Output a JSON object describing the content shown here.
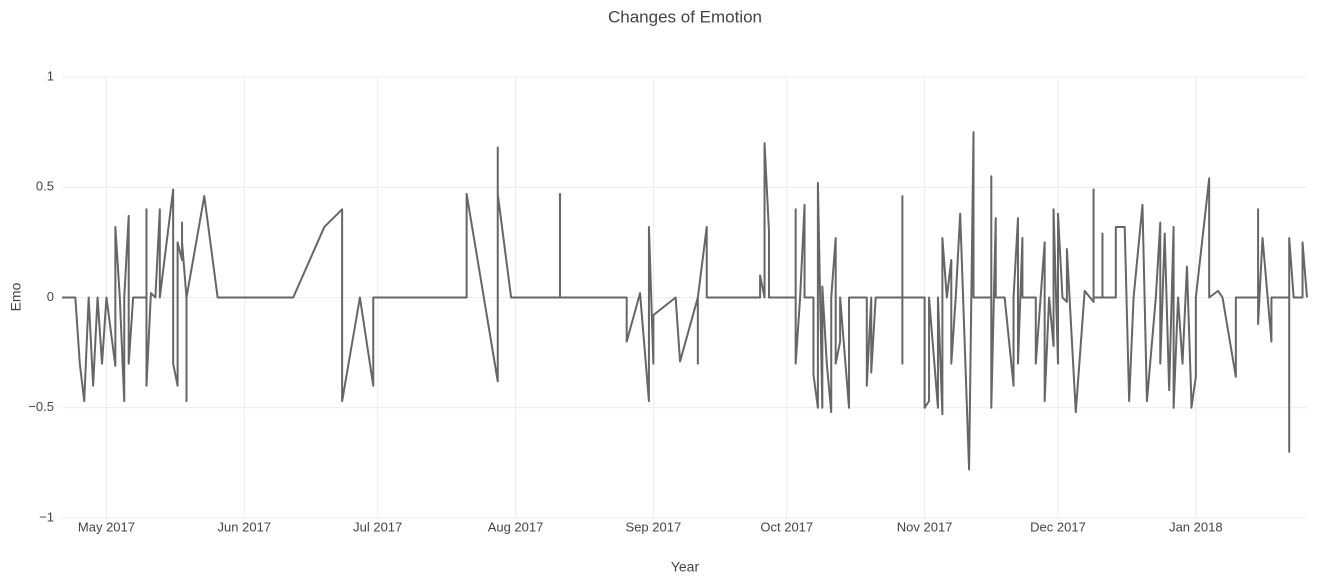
{
  "chart_data": {
    "type": "line",
    "title": "Changes of Emotion",
    "x_label": "Year",
    "y_label": "Emo",
    "color": "#666666",
    "grid": true,
    "xlim": [
      "2017-04-21",
      "2018-01-26"
    ],
    "xticks": [
      {
        "value": "2017-05-01",
        "label": "May 2017"
      },
      {
        "value": "2017-06-01",
        "label": "Jun 2017"
      },
      {
        "value": "2017-07-01",
        "label": "Jul 2017"
      },
      {
        "value": "2017-08-01",
        "label": "Aug 2017"
      },
      {
        "value": "2017-09-01",
        "label": "Sep 2017"
      },
      {
        "value": "2017-10-01",
        "label": "Oct 2017"
      },
      {
        "value": "2017-11-01",
        "label": "Nov 2017"
      },
      {
        "value": "2017-12-01",
        "label": "Dec 2017"
      },
      {
        "value": "2018-01-01",
        "label": "Jan 2018"
      }
    ],
    "ylim": [
      -1,
      1
    ],
    "yticks": [
      {
        "value": -1,
        "label": "−1"
      },
      {
        "value": -0.5,
        "label": "−0.5"
      },
      0,
      0.5,
      1
    ],
    "x": [
      "2017-04-21",
      "2017-04-24",
      "2017-04-25",
      "2017-04-26",
      "2017-04-27",
      "2017-04-28",
      "2017-04-29",
      "2017-04-30",
      "2017-05-01",
      "2017-05-03",
      "2017-05-03",
      "2017-05-04",
      "2017-05-05",
      "2017-05-05",
      "2017-05-06",
      "2017-05-06",
      "2017-05-07",
      "2017-05-10",
      "2017-05-10",
      "2017-05-10",
      "2017-05-11",
      "2017-05-12",
      "2017-05-13",
      "2017-05-13",
      "2017-05-16",
      "2017-05-16",
      "2017-05-17",
      "2017-05-17",
      "2017-05-18",
      "2017-05-18",
      "2017-05-18",
      "2017-05-19",
      "2017-05-19",
      "2017-05-19",
      "2017-05-23",
      "2017-05-26",
      "2017-06-12",
      "2017-06-19",
      "2017-06-23",
      "2017-06-23",
      "2017-06-27",
      "2017-06-30",
      "2017-06-30",
      "2017-07-21",
      "2017-07-21",
      "2017-07-28",
      "2017-07-28",
      "2017-07-28",
      "2017-07-31",
      "2017-08-11",
      "2017-08-11",
      "2017-08-11",
      "2017-08-26",
      "2017-08-26",
      "2017-08-29",
      "2017-08-31",
      "2017-08-31",
      "2017-09-01",
      "2017-09-01",
      "2017-09-06",
      "2017-09-07",
      "2017-09-11",
      "2017-09-11",
      "2017-09-11",
      "2017-09-13",
      "2017-09-13",
      "2017-09-25",
      "2017-09-25",
      "2017-09-26",
      "2017-09-26",
      "2017-09-27",
      "2017-09-27",
      "2017-10-03",
      "2017-10-03",
      "2017-10-03",
      "2017-10-04",
      "2017-10-05",
      "2017-10-05",
      "2017-10-07",
      "2017-10-07",
      "2017-10-08",
      "2017-10-08",
      "2017-10-09",
      "2017-10-09",
      "2017-10-10",
      "2017-10-11",
      "2017-10-11",
      "2017-10-12",
      "2017-10-12",
      "2017-10-13",
      "2017-10-13",
      "2017-10-15",
      "2017-10-15",
      "2017-10-19",
      "2017-10-19",
      "2017-10-20",
      "2017-10-20",
      "2017-10-21",
      "2017-10-27",
      "2017-10-27",
      "2017-10-27",
      "2017-10-27",
      "2017-11-01",
      "2017-11-01",
      "2017-11-02",
      "2017-11-02",
      "2017-11-02",
      "2017-11-04",
      "2017-11-04",
      "2017-11-05",
      "2017-11-05",
      "2017-11-06",
      "2017-11-07",
      "2017-11-07",
      "2017-11-08",
      "2017-11-09",
      "2017-11-11",
      "2017-11-12",
      "2017-11-12",
      "2017-11-16",
      "2017-11-16",
      "2017-11-16",
      "2017-11-17",
      "2017-11-17",
      "2017-11-19",
      "2017-11-21",
      "2017-11-21",
      "2017-11-22",
      "2017-11-22",
      "2017-11-23",
      "2017-11-23",
      "2017-11-26",
      "2017-11-26",
      "2017-11-28",
      "2017-11-28",
      "2017-11-29",
      "2017-11-30",
      "2017-11-30",
      "2017-12-01",
      "2017-12-01",
      "2017-12-02",
      "2017-12-03",
      "2017-12-03",
      "2017-12-05",
      "2017-12-07",
      "2017-12-09",
      "2017-12-09",
      "2017-12-09",
      "2017-12-11",
      "2017-12-11",
      "2017-12-11",
      "2017-12-14",
      "2017-12-14",
      "2017-12-16",
      "2017-12-17",
      "2017-12-18",
      "2017-12-20",
      "2017-12-21",
      "2017-12-23",
      "2017-12-24",
      "2017-12-24",
      "2017-12-25",
      "2017-12-26",
      "2017-12-27",
      "2017-12-27",
      "2017-12-28",
      "2017-12-29",
      "2017-12-30",
      "2017-12-31",
      "2017-12-31",
      "2018-01-01",
      "2018-01-01",
      "2018-01-04",
      "2018-01-04",
      "2018-01-06",
      "2018-01-07",
      "2018-01-10",
      "2018-01-10",
      "2018-01-15",
      "2018-01-15",
      "2018-01-15",
      "2018-01-16",
      "2018-01-18",
      "2018-01-18",
      "2018-01-22",
      "2018-01-22",
      "2018-01-22",
      "2018-01-23",
      "2018-01-25",
      "2018-01-25",
      "2018-01-26"
    ],
    "values": [
      0,
      0,
      -0.3,
      -0.47,
      0,
      -0.4,
      0,
      -0.3,
      0,
      -0.31,
      0.32,
      0,
      -0.47,
      0,
      0.37,
      -0.3,
      0,
      0,
      0.4,
      -0.4,
      0.02,
      0,
      0.4,
      0,
      0.49,
      -0.3,
      -0.4,
      0.25,
      0.17,
      0.34,
      0.25,
      0,
      -0.47,
      0,
      0.46,
      0,
      0,
      0.32,
      0.4,
      -0.47,
      0,
      -0.4,
      0,
      0,
      0.47,
      -0.38,
      0.68,
      0.47,
      0,
      0,
      0.47,
      0,
      0,
      -0.2,
      0.02,
      -0.47,
      0.32,
      -0.3,
      -0.08,
      0,
      -0.29,
      0,
      -0.3,
      0,
      0.32,
      0,
      0,
      0.1,
      0,
      0.7,
      0.3,
      0,
      0,
      0.4,
      -0.3,
      0,
      0.42,
      0,
      0,
      -0.35,
      -0.5,
      0.52,
      -0.5,
      0.05,
      -0.3,
      -0.52,
      0,
      0.27,
      -0.3,
      -0.2,
      0,
      -0.5,
      0,
      0,
      -0.4,
      0,
      -0.34,
      0,
      0,
      0.46,
      -0.3,
      0,
      0,
      -0.5,
      -0.47,
      -0.34,
      0,
      -0.5,
      0,
      -0.53,
      0.27,
      0,
      0.17,
      -0.3,
      0,
      0.38,
      -0.78,
      0.75,
      0,
      0,
      0.55,
      -0.5,
      0.36,
      0,
      0,
      -0.4,
      0,
      0.36,
      -0.3,
      0.27,
      0,
      0,
      -0.3,
      0.25,
      -0.47,
      0,
      -0.22,
      0.4,
      -0.3,
      0.38,
      0,
      -0.02,
      0.22,
      -0.52,
      0.03,
      -0.02,
      0.49,
      0,
      0,
      0.29,
      0,
      0,
      0.32,
      0.32,
      -0.47,
      0,
      0.42,
      -0.47,
      0,
      0.34,
      -0.3,
      0.29,
      -0.42,
      0.32,
      -0.5,
      0,
      -0.3,
      0.14,
      -0.47,
      -0.5,
      -0.36,
      0,
      0.54,
      0,
      0.03,
      0,
      -0.36,
      0,
      0,
      0.4,
      -0.12,
      0.27,
      -0.2,
      0,
      0,
      -0.7,
      0.27,
      0,
      0,
      0.25,
      0
    ]
  }
}
